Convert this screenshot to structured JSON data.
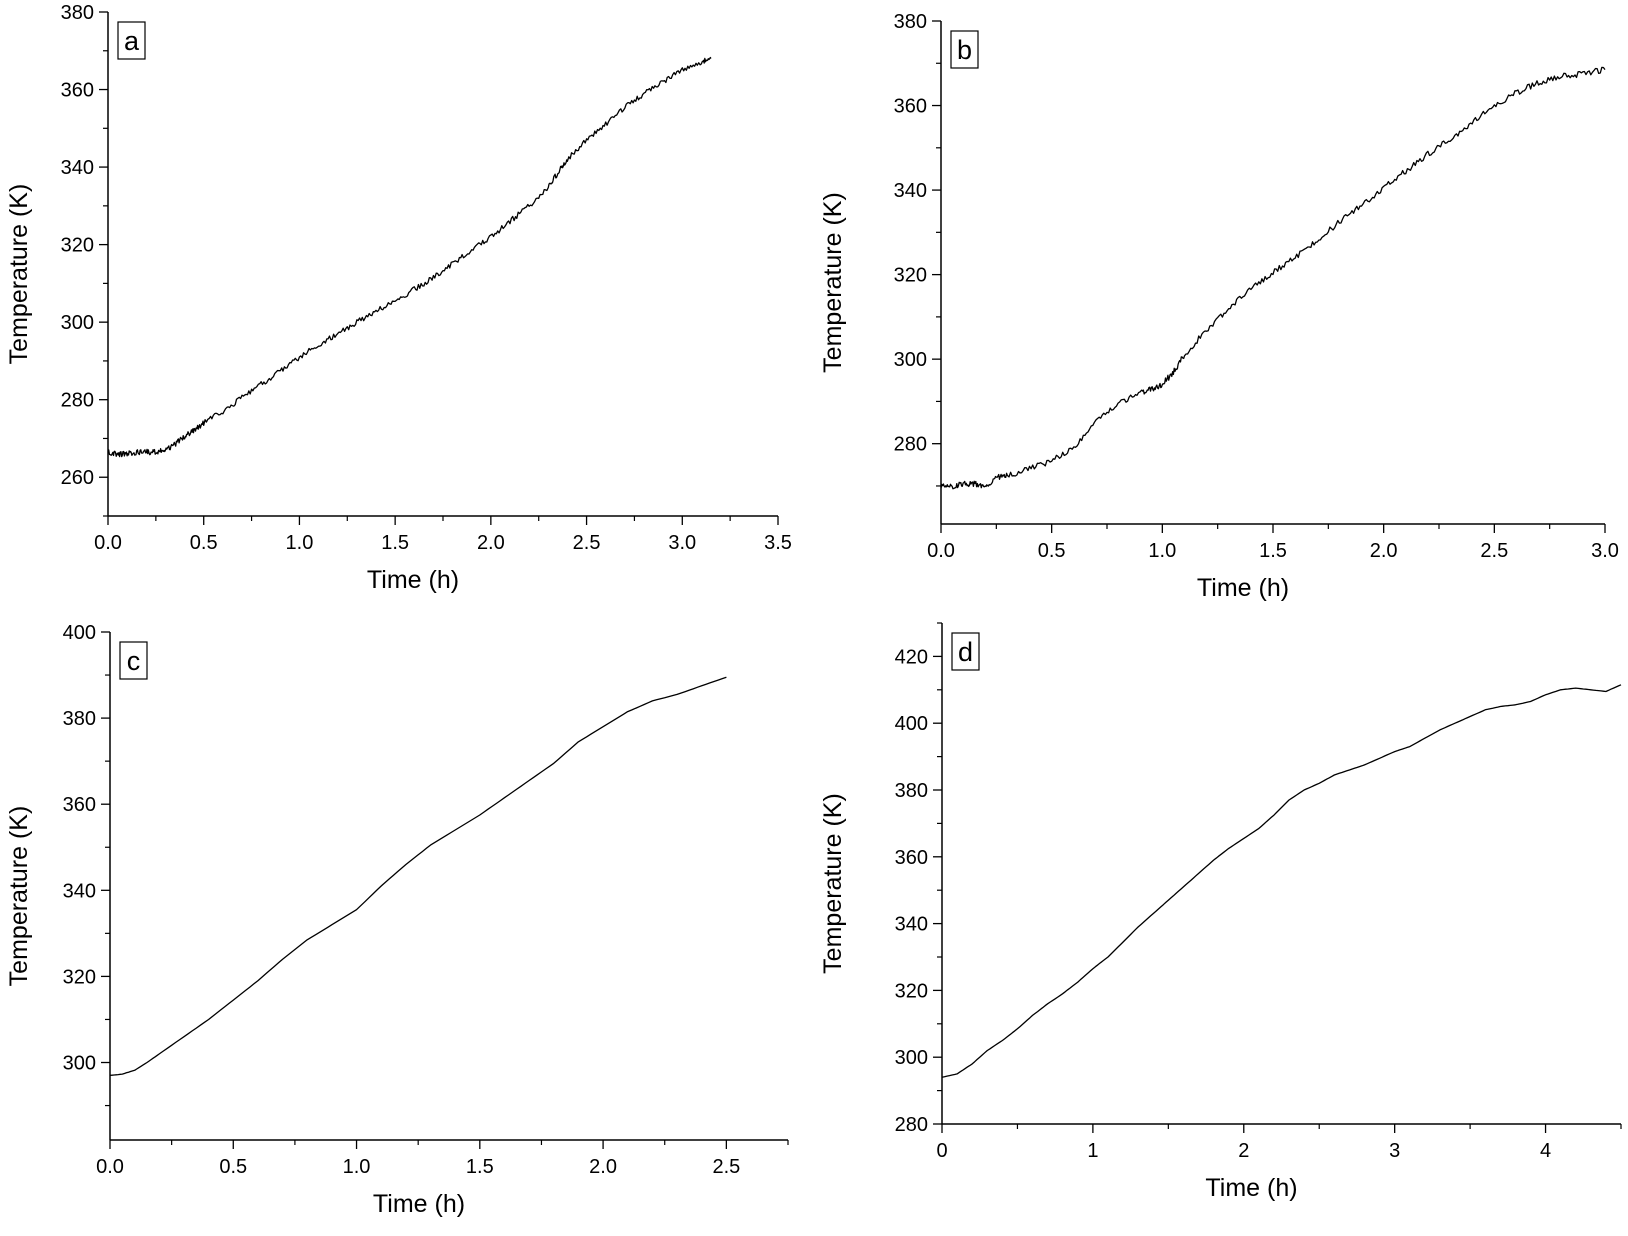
{
  "chart_data": [
    {
      "panel_label": "a",
      "type": "line",
      "xlabel": "Time (h)",
      "ylabel": "Temperature (K)",
      "xlim": [
        0,
        3.5
      ],
      "ylim": [
        250,
        380
      ],
      "xticks": [
        "0.0",
        "0.5",
        "1.0",
        "1.5",
        "2.0",
        "2.5",
        "3.0",
        "3.5"
      ],
      "yticks": [
        "260",
        "280",
        "300",
        "320",
        "340",
        "360",
        "380"
      ],
      "grid": false,
      "series": [
        {
          "x": [
            0,
            0.05,
            0.1,
            0.15,
            0.2,
            0.25,
            0.3,
            0.35,
            0.4,
            0.45,
            0.5,
            0.6,
            0.7,
            0.8,
            0.9,
            1.0,
            1.1,
            1.2,
            1.3,
            1.4,
            1.5,
            1.6,
            1.7,
            1.8,
            1.9,
            2.0,
            2.1,
            2.2,
            2.3,
            2.35,
            2.4,
            2.5,
            2.6,
            2.7,
            2.8,
            2.9,
            3.0,
            3.1,
            3.15
          ],
          "y": [
            266.5,
            266,
            266,
            266.5,
            266.5,
            266.5,
            267,
            268.5,
            270.5,
            272,
            274,
            277,
            280.5,
            284,
            287.5,
            291,
            294,
            297,
            300,
            303,
            305.5,
            308.5,
            311.5,
            315,
            318.5,
            322,
            326,
            330,
            335,
            338.5,
            342,
            347,
            351,
            355.5,
            359,
            362,
            365,
            367,
            368
          ]
        }
      ]
    },
    {
      "panel_label": "b",
      "type": "line",
      "xlabel": "Time (h)",
      "ylabel": "Temperature (K)",
      "xlim": [
        0,
        3.0
      ],
      "ylim": [
        261,
        380
      ],
      "xticks": [
        "0.0",
        "0.5",
        "1.0",
        "1.5",
        "2.0",
        "2.5",
        "3.0"
      ],
      "yticks": [
        "280",
        "300",
        "320",
        "340",
        "360",
        "380"
      ],
      "grid": false,
      "series": [
        {
          "x": [
            0,
            0.05,
            0.1,
            0.15,
            0.2,
            0.25,
            0.3,
            0.4,
            0.5,
            0.6,
            0.7,
            0.8,
            0.9,
            0.95,
            1.0,
            1.05,
            1.1,
            1.2,
            1.3,
            1.4,
            1.5,
            1.6,
            1.7,
            1.8,
            1.9,
            2.0,
            2.1,
            2.2,
            2.3,
            2.4,
            2.5,
            2.6,
            2.7,
            2.8,
            2.9,
            3.0
          ],
          "y": [
            270,
            270,
            270.5,
            270.5,
            270,
            272,
            272.5,
            274,
            276,
            279,
            285,
            289.5,
            292,
            293,
            294,
            297,
            301,
            307,
            312,
            316.5,
            320.5,
            324,
            328,
            332.5,
            336.5,
            340.5,
            344.5,
            348.5,
            352,
            356,
            360,
            363,
            365.5,
            367,
            367.5,
            368.5
          ]
        }
      ]
    },
    {
      "panel_label": "c",
      "type": "line",
      "xlabel": "Time (h)",
      "ylabel": "Temperature (K)",
      "xlim": [
        0,
        2.75
      ],
      "ylim": [
        282,
        400
      ],
      "xticks": [
        "0.0",
        "0.5",
        "1.0",
        "1.5",
        "2.0",
        "2.5"
      ],
      "yticks": [
        "300",
        "320",
        "340",
        "360",
        "380",
        "400"
      ],
      "grid": false,
      "series": [
        {
          "x": [
            0,
            0.05,
            0.1,
            0.15,
            0.2,
            0.3,
            0.4,
            0.5,
            0.6,
            0.7,
            0.8,
            0.9,
            1.0,
            1.1,
            1.2,
            1.3,
            1.4,
            1.5,
            1.6,
            1.7,
            1.8,
            1.9,
            2.0,
            2.1,
            2.2,
            2.3,
            2.4,
            2.5
          ],
          "y": [
            297,
            297.3,
            298.2,
            300,
            302,
            306,
            310,
            314.5,
            319,
            324,
            328.5,
            332,
            335.5,
            341,
            346,
            350.5,
            354,
            357.5,
            361.5,
            365.5,
            369.5,
            374.5,
            378,
            381.5,
            384,
            385.5,
            387.5,
            389.5
          ]
        }
      ]
    },
    {
      "panel_label": "d",
      "type": "line",
      "xlabel": "Time (h)",
      "ylabel": "Temperature (K)",
      "xlim": [
        0,
        4.5
      ],
      "ylim": [
        280,
        430
      ],
      "xticks": [
        "0",
        "1",
        "2",
        "3",
        "4"
      ],
      "yticks": [
        "280",
        "300",
        "320",
        "340",
        "360",
        "380",
        "400",
        "420"
      ],
      "grid": false,
      "series": [
        {
          "x": [
            0,
            0.1,
            0.2,
            0.3,
            0.4,
            0.5,
            0.6,
            0.7,
            0.8,
            0.9,
            1.0,
            1.1,
            1.2,
            1.3,
            1.4,
            1.5,
            1.6,
            1.7,
            1.8,
            1.9,
            2.0,
            2.1,
            2.2,
            2.3,
            2.4,
            2.5,
            2.6,
            2.7,
            2.8,
            2.9,
            3.0,
            3.1,
            3.2,
            3.3,
            3.4,
            3.5,
            3.6,
            3.7,
            3.8,
            3.9,
            4.0,
            4.1,
            4.2,
            4.3,
            4.4,
            4.5
          ],
          "y": [
            294,
            295,
            298,
            302,
            305,
            308.5,
            312.5,
            316,
            319,
            322.5,
            326.5,
            330,
            334.5,
            339,
            343,
            347,
            351,
            355,
            359,
            362.5,
            365.5,
            368.5,
            372.5,
            377,
            380,
            382,
            384.5,
            386,
            387.5,
            389.5,
            391.5,
            393,
            395.5,
            398,
            400,
            402,
            404,
            405,
            405.5,
            406.5,
            408.5,
            410,
            410.5,
            410,
            409.5,
            411.5
          ]
        }
      ]
    }
  ]
}
